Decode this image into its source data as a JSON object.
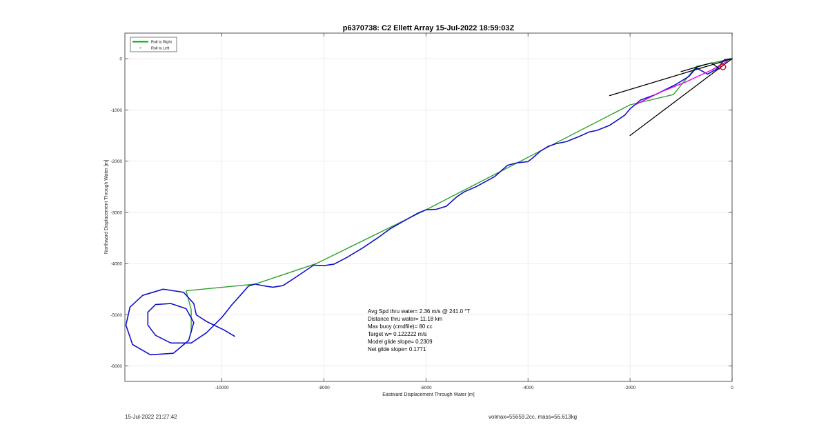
{
  "chart_data": {
    "type": "line",
    "title": "p6370738: C2 Ellett Array 15-Jul-2022 18:59:03Z",
    "xlabel": "Eastward Displacement Through Water [m]",
    "ylabel": "Northward Displacement Through Water [m]",
    "xlim": [
      -11900,
      0
    ],
    "ylim": [
      -6300,
      500
    ],
    "xticks": [
      -10000,
      -8000,
      -6000,
      -4000,
      -2000,
      0
    ],
    "xtick_labels": [
      "-10000",
      "-8000",
      "-6000",
      "-4000",
      "-2000",
      "0"
    ],
    "yticks": [
      0,
      -1000,
      -2000,
      -3000,
      -4000,
      -5000,
      -6000
    ],
    "ytick_labels": [
      "0",
      "-1000",
      "-2000",
      "-3000",
      "-4000",
      "-5000",
      "-6000"
    ],
    "grid": true,
    "legend": {
      "placement": "top-left",
      "entries": [
        {
          "label": "Roll to Right",
          "color": "#00a000",
          "style": "line"
        },
        {
          "label": "Roll to Left",
          "color": "#00a000",
          "style": "point"
        }
      ]
    },
    "series": [
      {
        "name": "Roll to Right",
        "color": "#2ca02c",
        "points": [
          [
            0,
            0
          ],
          [
            -700,
            -150
          ],
          [
            -1150,
            -700
          ],
          [
            -2000,
            -900
          ],
          [
            -6000,
            -2950
          ],
          [
            -8150,
            -4000
          ],
          [
            -9350,
            -4400
          ],
          [
            -10700,
            -4530
          ],
          [
            -10600,
            -4900
          ],
          [
            -10600,
            -5350
          ]
        ]
      },
      {
        "name": "",
        "color": "#1010c8",
        "points": [
          [
            0,
            0
          ],
          [
            -150,
            -20
          ],
          [
            -300,
            -200
          ],
          [
            -480,
            -300
          ],
          [
            -700,
            -180
          ],
          [
            -850,
            -350
          ],
          [
            -1100,
            -500
          ],
          [
            -1500,
            -700
          ],
          [
            -1800,
            -810
          ],
          [
            -2000,
            -980
          ],
          [
            -2100,
            -1100
          ],
          [
            -2250,
            -1200
          ],
          [
            -2400,
            -1300
          ],
          [
            -2650,
            -1400
          ],
          [
            -2800,
            -1430
          ],
          [
            -3000,
            -1520
          ],
          [
            -3250,
            -1620
          ],
          [
            -3450,
            -1660
          ],
          [
            -3600,
            -1710
          ],
          [
            -3750,
            -1800
          ],
          [
            -3900,
            -1930
          ],
          [
            -4000,
            -2010
          ],
          [
            -4200,
            -2030
          ],
          [
            -4400,
            -2080
          ],
          [
            -4650,
            -2300
          ],
          [
            -5000,
            -2490
          ],
          [
            -5250,
            -2600
          ],
          [
            -5400,
            -2700
          ],
          [
            -5600,
            -2880
          ],
          [
            -5800,
            -2940
          ],
          [
            -6000,
            -2950
          ],
          [
            -6150,
            -3010
          ],
          [
            -6400,
            -3150
          ],
          [
            -6700,
            -3320
          ],
          [
            -6950,
            -3500
          ],
          [
            -7250,
            -3700
          ],
          [
            -7550,
            -3880
          ],
          [
            -7800,
            -4010
          ],
          [
            -8000,
            -4040
          ],
          [
            -8200,
            -4030
          ],
          [
            -8450,
            -4200
          ],
          [
            -8800,
            -4430
          ],
          [
            -9000,
            -4460
          ],
          [
            -9200,
            -4430
          ],
          [
            -9350,
            -4400
          ],
          [
            -9480,
            -4440
          ],
          [
            -9620,
            -4600
          ],
          [
            -9800,
            -4800
          ],
          [
            -10000,
            -5050
          ],
          [
            -10300,
            -5350
          ],
          [
            -10600,
            -5550
          ],
          [
            -11000,
            -5550
          ],
          [
            -11300,
            -5400
          ],
          [
            -11450,
            -5200
          ],
          [
            -11450,
            -4950
          ],
          [
            -11300,
            -4800
          ],
          [
            -11000,
            -4780
          ],
          [
            -10700,
            -4880
          ],
          [
            -10550,
            -5150
          ],
          [
            -10650,
            -5500
          ],
          [
            -10950,
            -5750
          ],
          [
            -11400,
            -5780
          ],
          [
            -11750,
            -5580
          ],
          [
            -11880,
            -5200
          ],
          [
            -11800,
            -4850
          ],
          [
            -11550,
            -4620
          ],
          [
            -11150,
            -4500
          ],
          [
            -10750,
            -4560
          ],
          [
            -10550,
            -4780
          ],
          [
            -10500,
            -5000
          ],
          [
            -10300,
            -5130
          ],
          [
            -9950,
            -5300
          ],
          [
            -9750,
            -5420
          ]
        ]
      },
      {
        "name": "",
        "color": "#e000e0",
        "points": [
          [
            -100,
            -50
          ],
          [
            -400,
            -220
          ],
          [
            -900,
            -450
          ],
          [
            -1400,
            -650
          ],
          [
            -1900,
            -900
          ]
        ]
      },
      {
        "name": "",
        "color": "#000000",
        "points": [
          [
            0,
            0
          ],
          [
            -2400,
            -720
          ]
        ]
      },
      {
        "name": "",
        "color": "#000000",
        "points": [
          [
            0,
            0
          ],
          [
            -2000,
            -1500
          ]
        ]
      },
      {
        "name": "",
        "color": "#000000",
        "points": [
          [
            -1000,
            -250
          ],
          [
            -400,
            -80
          ],
          [
            -250,
            -200
          ]
        ]
      }
    ],
    "markers": [
      {
        "x": -180,
        "y": -160,
        "color": "#e00000",
        "shape": "circle"
      }
    ],
    "annotation": [
      "Avg Spd thru water=  2.36 m/s @ 241.0 °T",
      "Distance thru water= 11.18 km",
      "Max buoy (cmdfile)= 80 cc",
      "Target w= 0.122222 m/s",
      "Model glide slope= 0.2309",
      "Net glide slope= 0.1771"
    ]
  },
  "footer": {
    "left": "15-Jul-2022 21:27:42",
    "right": "volmax=55659.2cc, mass=56.613kg"
  }
}
